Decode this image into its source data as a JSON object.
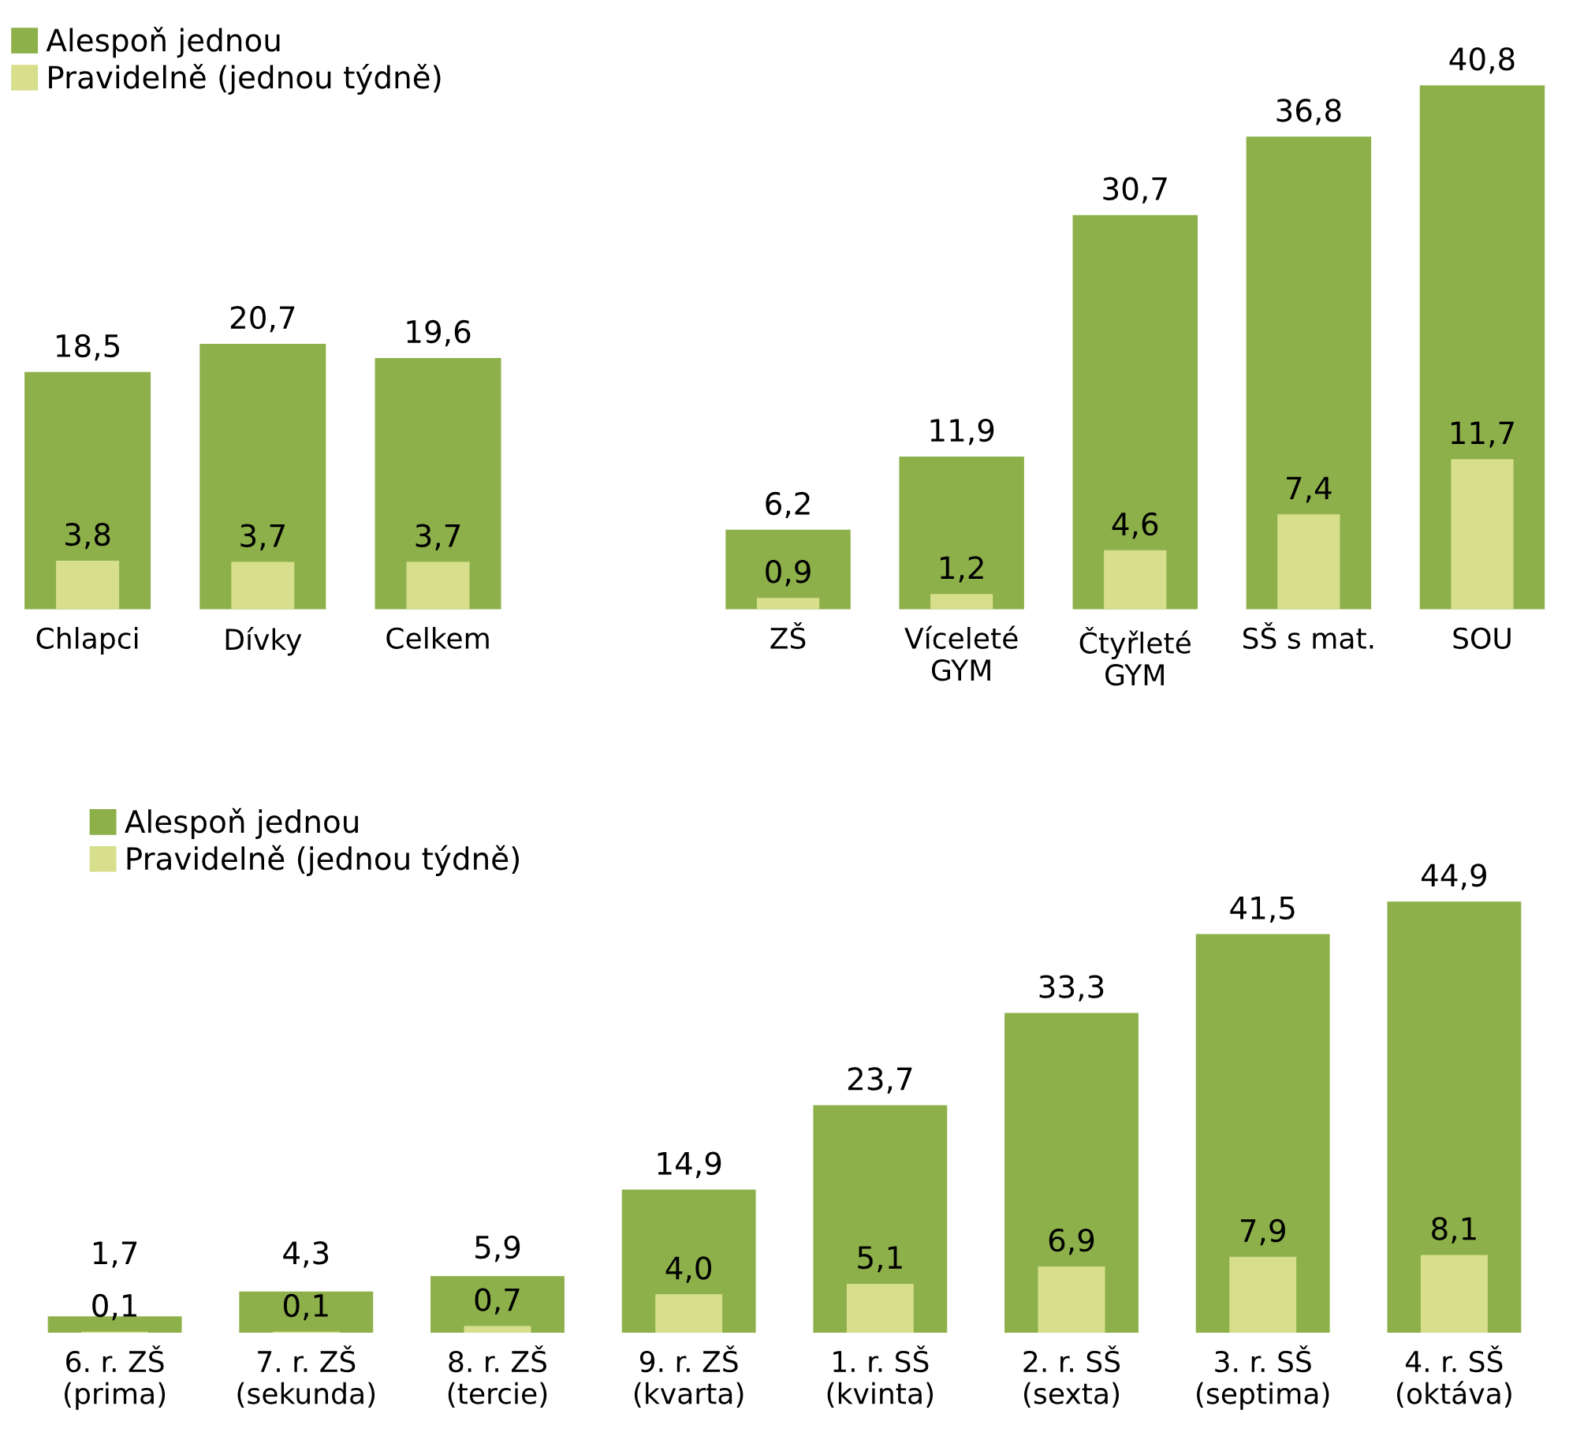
{
  "chart_data": [
    {
      "type": "bar",
      "categories": [
        "Chlapci",
        "Dívky",
        "Celkem"
      ],
      "legend": "top left",
      "series": [
        {
          "name": "Alespoň jednou",
          "color": "#8db04a",
          "values": [
            18.5,
            20.7,
            19.6
          ],
          "value_labels": [
            "18,5",
            "20,7",
            "19,6"
          ]
        },
        {
          "name": "Pravidelně (jednou týdně)",
          "color": "#d7df8c",
          "values": [
            3.8,
            3.7,
            3.7
          ],
          "value_labels": [
            "3,8",
            "3,7",
            "3,7"
          ]
        }
      ]
    },
    {
      "type": "bar",
      "categories": [
        "ZŠ",
        "Víceleté\nGYM",
        "Čtyřleté\nGYM",
        "SŠ s mat.",
        "SOU"
      ],
      "legend": false,
      "series": [
        {
          "color": "#8db04a",
          "values": [
            6.2,
            11.9,
            30.7,
            36.8,
            40.8
          ],
          "value_labels": [
            "6,2",
            "11,9",
            "30,7",
            "36,8",
            "40,8"
          ]
        },
        {
          "color": "#d7df8c",
          "values": [
            0.9,
            1.2,
            4.6,
            7.4,
            11.7
          ],
          "value_labels": [
            "0,9",
            "1,2",
            "4,6",
            "7,4",
            "11,7"
          ]
        }
      ]
    },
    {
      "type": "bar",
      "categories": [
        "6. r. ZŠ\n(prima)",
        "7. r. ZŠ\n(sekunda)",
        "8. r. ZŠ\n(tercie)",
        "9. r. ZŠ\n(kvarta)",
        "1. r. SŠ\n(kvinta)",
        "2. r. SŠ\n(sexta)",
        "3. r. SŠ\n(septima)",
        "4. r. SŠ\n(oktáva)"
      ],
      "legend": "top left",
      "series": [
        {
          "name": "Alespoň jednou",
          "color": "#8db04a",
          "values": [
            1.7,
            4.3,
            5.9,
            14.9,
            23.7,
            33.3,
            41.5,
            44.9
          ],
          "value_labels": [
            "1,7",
            "4,3",
            "5,9",
            "14,9",
            "23,7",
            "33,3",
            "41,5",
            "44,9"
          ]
        },
        {
          "name": "Pravidelně (jednou týdně)",
          "color": "#d7df8c",
          "values": [
            0.1,
            0.1,
            0.7,
            4.0,
            5.1,
            6.9,
            7.9,
            8.1
          ],
          "value_labels": [
            "0,1",
            "0,1",
            "0,7",
            "4,0",
            "5,1",
            "6,9",
            "7,9",
            "8,1"
          ]
        }
      ]
    }
  ]
}
